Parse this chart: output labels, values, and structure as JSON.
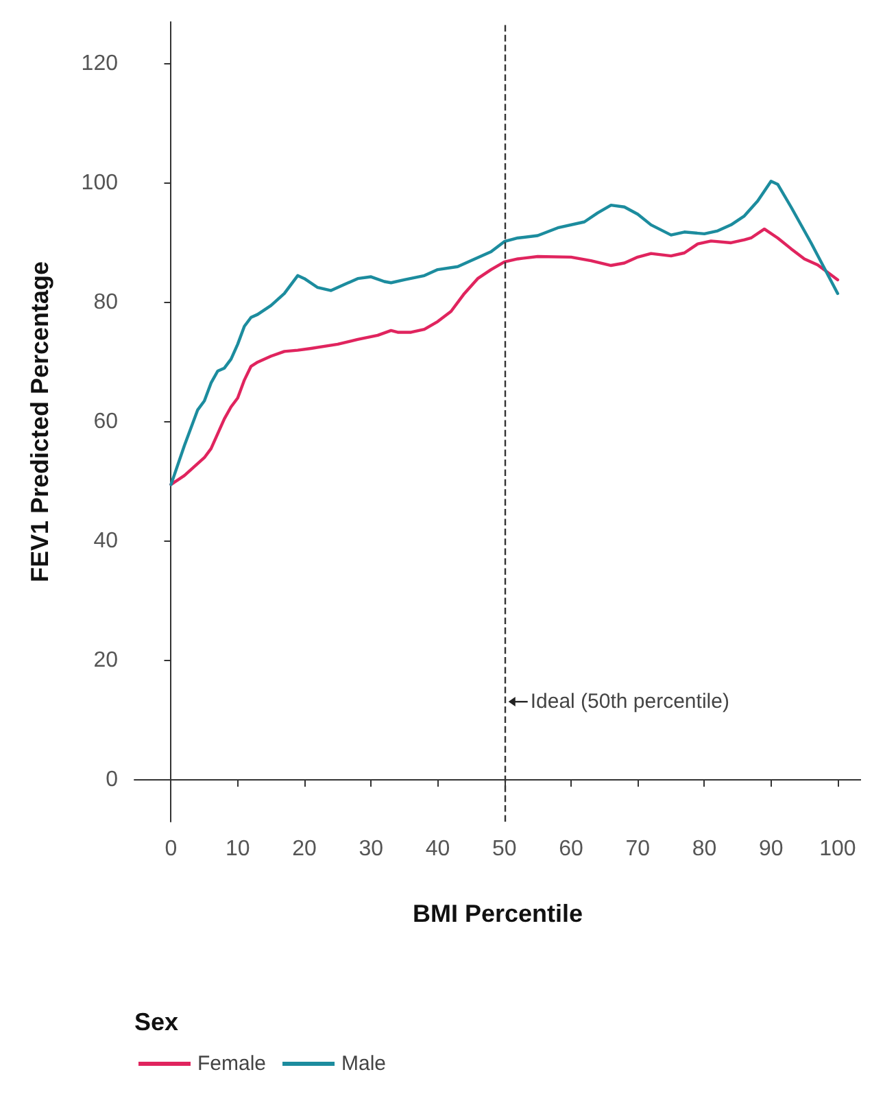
{
  "chart_data": {
    "type": "line",
    "xlabel": "BMI Percentile",
    "ylabel": "FEV1 Predicted Percentage",
    "legend_title": "Sex",
    "legend": "bottom left",
    "grid": false,
    "marker": "none",
    "line_style": "solid",
    "xlim": [
      -5.5,
      103.5
    ],
    "xticks": [
      0,
      10,
      20,
      30,
      40,
      50,
      60,
      70,
      80,
      90,
      100
    ],
    "ylim": [
      -7,
      127
    ],
    "yticks": [
      0,
      20,
      40,
      60,
      80,
      100,
      120
    ],
    "ref_lines": [
      {
        "axis": "x",
        "value": 50,
        "label": "Ideal (50th percentile)",
        "line_style": "dashed",
        "color": "#333333"
      }
    ],
    "series": [
      {
        "name": "Female",
        "color": "#e0245e",
        "x": [
          0,
          2,
          4,
          5,
          6,
          7,
          8,
          9,
          10,
          11,
          12,
          13,
          15,
          17,
          19,
          21,
          25,
          28,
          31,
          33,
          34,
          36,
          38,
          40,
          42,
          44,
          46,
          48,
          50,
          52,
          55,
          60,
          63,
          66,
          68,
          70,
          72,
          75,
          77,
          79,
          81,
          84,
          86,
          87,
          89,
          91,
          93,
          95,
          97,
          100
        ],
        "values": [
          49.5,
          51,
          53,
          54,
          55.5,
          58,
          60.5,
          62.5,
          64,
          67,
          69.3,
          70,
          71,
          71.8,
          72,
          72.3,
          73,
          73.8,
          74.5,
          75.3,
          75,
          75,
          75.5,
          76.8,
          78.5,
          81.5,
          84,
          85.5,
          86.8,
          87.3,
          87.7,
          87.6,
          87,
          86.2,
          86.6,
          87.6,
          88.2,
          87.8,
          88.3,
          89.8,
          90.3,
          90,
          90.5,
          90.8,
          92.3,
          90.8,
          89,
          87.3,
          86.3,
          83.8
        ]
      },
      {
        "name": "Male",
        "color": "#1c8c9e",
        "x": [
          0,
          2,
          4,
          5,
          6,
          7,
          8,
          9,
          10,
          11,
          12,
          13,
          15,
          17,
          18,
          19,
          20,
          22,
          24,
          26,
          28,
          30,
          32,
          33,
          35,
          38,
          40,
          43,
          45,
          48,
          50,
          52,
          55,
          58,
          62,
          64,
          66,
          68,
          70,
          72,
          75,
          77,
          80,
          82,
          84,
          86,
          88,
          90,
          91,
          93,
          96,
          100
        ],
        "values": [
          49.5,
          56,
          62,
          63.5,
          66.5,
          68.5,
          69,
          70.5,
          73,
          76,
          77.5,
          78,
          79.5,
          81.5,
          83,
          84.5,
          84,
          82.5,
          82,
          83,
          84,
          84.3,
          83.5,
          83.3,
          83.8,
          84.5,
          85.5,
          86,
          87,
          88.5,
          90.2,
          90.8,
          91.2,
          92.5,
          93.5,
          95,
          96.3,
          96,
          94.8,
          93,
          91.3,
          91.8,
          91.5,
          92,
          93,
          94.5,
          97,
          100.3,
          99.8,
          96,
          90,
          81.5
        ]
      }
    ]
  }
}
